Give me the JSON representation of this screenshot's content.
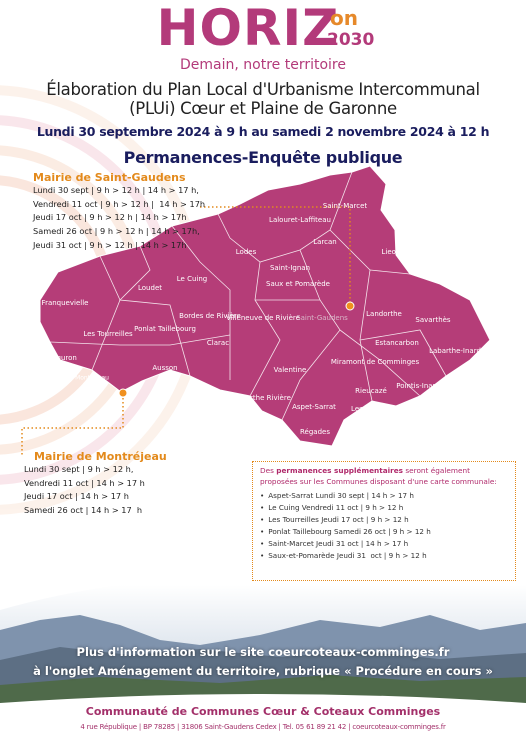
{
  "logo": {
    "word": "HORIZ",
    "superscript": "on",
    "year": "2030",
    "tagline": "Demain, notre territoire"
  },
  "header": {
    "title_lines": [
      "Élaboration du Plan Local d'Urbanisme Intercommunal",
      "(PLUi) Cœur et Plaine de Garonne"
    ],
    "dates": "Lundi 30 septembre 2024 à 9 h au samedi 2 novembre 2024 à 12 h",
    "subtitle": "Permanences-Enquête publique"
  },
  "saint_gaudens": {
    "title": "Mairie de Saint-Gaudens",
    "lines": [
      "Lundi 30 sept | 9 h > 12 h | 14 h > 17 h,",
      "Vendredi 11 oct | 9 h > 12 h |  14 h > 17h",
      "Jeudi 17 oct | 9 h > 12 h | 14 h > 17h",
      "Samedi 26 oct | 9 h > 12 h | 14 h > 17h,",
      "Jeudi 31 oct | 9 h > 12 h | 14 h > 17h"
    ]
  },
  "map": {
    "communes": [
      "Saint-Marcet",
      "Lalouret-Laffiteau",
      "Larcan",
      "Lodes",
      "Le Cuing",
      "Saint-Ignan",
      "Saux et Pomarède",
      "Lieoux",
      "Franquevielle",
      "Loudet",
      "Bordes de Rivière",
      "Saint-Gaudens",
      "Landorthe",
      "Savarthès",
      "Les Tourreilles",
      "Ponlat Taillebourg",
      "Villeneuve de Rivière",
      "Clarac",
      "Estancarbon",
      "Labarthe-Inard",
      "Cuguron",
      "Ausson",
      "Valentine",
      "Miramont de Comminges",
      "Pointis-Inard",
      "Montréjeau",
      "Labarthe Rivière",
      "Rieucazé",
      "Aspet-Sarrat",
      "Lespiteau",
      "Régades"
    ]
  },
  "montrejeau": {
    "title": "Mairie de Montréjeau",
    "lines": [
      "Lundi 30 sept | 9 h > 12 h,",
      "Vendredi 11 oct | 14 h > 17 h",
      "Jeudi 17 oct | 14 h > 17 h",
      "Samedi 26 oct | 14 h > 17  h"
    ]
  },
  "extra": {
    "intro_start": "Des ",
    "intro_bold": "permanences supplémentaires",
    "intro_end": " seront également proposées sur les Communes disposant d'une carte communale:",
    "items": [
      "Aspet-Sarrat Lundi 30 sept | 14 h > 17 h",
      "Le Cuing Vendredi 11 oct | 9 h > 12 h",
      "Les Tourreilles Jeudi 17 oct | 9 h > 12 h",
      "Ponlat Taillebourg Samedi 26 oct | 9 h > 12 h",
      "Saint-Marcet Jeudi 31 oct | 14 h > 17 h",
      "Saux-et-Pomarède Jeudi 31  oct | 9 h > 12 h"
    ]
  },
  "info": {
    "lines": [
      "Plus d'information sur le site coeurcoteaux-comminges.fr",
      "à l'onglet Aménagement du territoire, rubrique « Procédure en cours »"
    ]
  },
  "footer": {
    "organization": "Communauté de Communes Cœur & Coteaux Comminges",
    "address": "4 rue République | BP 78285 | 31806 Saint-Gaudens Cedex | Tel. 05 61 89 21 42 | coeurcoteaux-comminges.fr"
  }
}
